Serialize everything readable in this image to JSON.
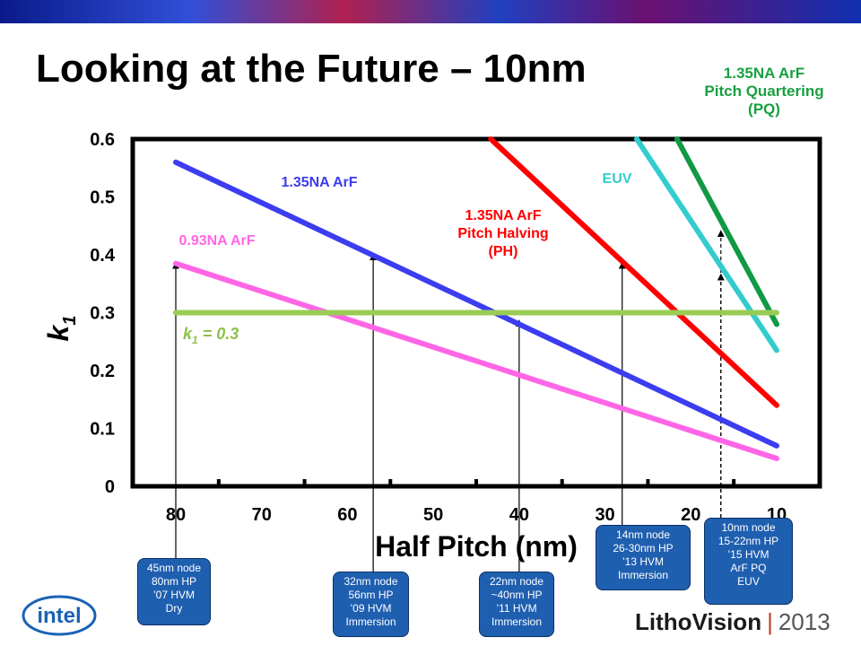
{
  "title": "Looking at the Future – 10nm",
  "pq_label": [
    "1.35NA ArF",
    "Pitch Quartering",
    "(PQ)"
  ],
  "chart_data": {
    "type": "line",
    "title": "Looking at the Future – 10nm",
    "xlabel": "Half Pitch (nm)",
    "ylabel": "k1",
    "xlim": [
      85,
      8
    ],
    "ylim": [
      0,
      0.6
    ],
    "x_ticks": [
      "80",
      "70",
      "60",
      "50",
      "40",
      "30",
      "20",
      "10"
    ],
    "y_ticks": [
      "0",
      "0.1",
      "0.2",
      "0.3",
      "0.4",
      "0.5",
      "0.6"
    ],
    "grid": false,
    "series": [
      {
        "name": "1.35NA ArF",
        "color": "#3c3cf0",
        "label_lines": [
          "1.35NA ArF"
        ],
        "x": [
          80,
          10
        ],
        "y": [
          0.56,
          0.07
        ]
      },
      {
        "name": "0.93NA ArF",
        "color": "#ff66e6",
        "label_lines": [
          "0.93NA ArF"
        ],
        "x": [
          80,
          10
        ],
        "y": [
          0.385,
          0.048
        ]
      },
      {
        "name": "1.35NA ArF Pitch Halving (PH)",
        "color": "#ff0000",
        "label_lines": [
          "1.35NA ArF",
          "Pitch Halving",
          "(PH)"
        ],
        "x": [
          43.3,
          10
        ],
        "y": [
          0.6,
          0.14
        ]
      },
      {
        "name": "EUV",
        "color": "#33cccc",
        "label_lines": [
          "EUV"
        ],
        "x": [
          26.3,
          10
        ],
        "y": [
          0.6,
          0.235
        ]
      },
      {
        "name": "1.35NA ArF Pitch Quartering (PQ)",
        "color": "#119944",
        "label_lines": [],
        "x": [
          21.6,
          10
        ],
        "y": [
          0.6,
          0.28
        ]
      },
      {
        "name": "k1 = 0.3",
        "color": "#99cc55",
        "label_lines": [],
        "x": [
          80,
          10
        ],
        "y": [
          0.3,
          0.3
        ]
      }
    ],
    "k1_label": {
      "text": "k",
      "sub": "1",
      "rest": " = 0.3"
    },
    "annotations": [
      {
        "x": 80,
        "arrow_to": 0.385,
        "dashed": false,
        "lines": [
          "45nm node",
          "80nm HP",
          "’07 HVM",
          "Dry"
        ]
      },
      {
        "x": 57,
        "arrow_to": 0.4,
        "dashed": false,
        "lines": [
          "32nm node",
          "56nm HP",
          "’09 HVM",
          "Immersion"
        ]
      },
      {
        "x": 40,
        "arrow_to": 0.285,
        "dashed": false,
        "lines": [
          "22nm node",
          "~40nm HP",
          "’11 HVM",
          "Immersion"
        ]
      },
      {
        "x": 28,
        "arrow_to": 0.385,
        "dashed": false,
        "lines": [
          "14nm node",
          "26-30nm HP",
          "’13 HVM",
          "Immersion"
        ]
      },
      {
        "x": 16.5,
        "arrow_to": 0.365,
        "dashed": true,
        "lines": [
          "10nm node",
          "15-22nm HP",
          "’15 HVM",
          "ArF PQ",
          "EUV"
        ]
      },
      {
        "x": 16.5,
        "arrow_to": 0.44,
        "dashed": true,
        "lines": []
      }
    ]
  },
  "logos": {
    "intel": "intel",
    "litho_part1": "Litho",
    "litho_part2": "Vision",
    "year": "2013"
  }
}
